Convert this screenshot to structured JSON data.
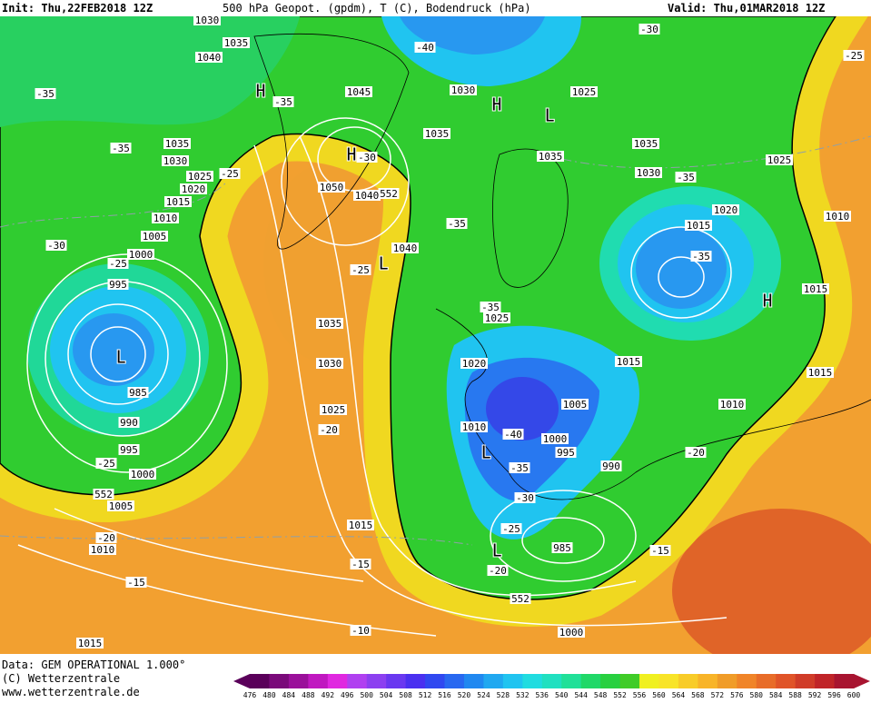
{
  "header": {
    "init": "Init: Thu,22FEB2018 12Z",
    "title": "500 hPa Geopot. (gpdm), T (C), Bodendruck (hPa)",
    "valid": "Valid: Thu,01MAR2018 12Z"
  },
  "footer": {
    "data": "Data: GEM OPERATIONAL 1.000°",
    "copyright": "(C) Wetterzentrale",
    "url": "www.wetterzentrale.de"
  },
  "scale": {
    "labels": [
      476,
      480,
      484,
      488,
      492,
      496,
      500,
      504,
      508,
      512,
      516,
      520,
      524,
      528,
      532,
      536,
      540,
      544,
      548,
      552,
      556,
      560,
      564,
      568,
      572,
      576,
      580,
      584,
      588,
      592,
      596,
      600
    ],
    "colors": [
      "#5a005a",
      "#7a0a7a",
      "#9a109a",
      "#c018c0",
      "#e028e0",
      "#b040f0",
      "#8c40f0",
      "#6a38f0",
      "#4a30f0",
      "#3048f0",
      "#2868f0",
      "#2088f0",
      "#20a8f0",
      "#20c4f0",
      "#20dce0",
      "#20e0c0",
      "#20e098",
      "#20d868",
      "#28d040",
      "#40cc28",
      "#f0f020",
      "#f8e428",
      "#f8cc28",
      "#f8b428",
      "#f09c28",
      "#f08428",
      "#e86c28",
      "#e05428",
      "#d03c28",
      "#c02428",
      "#a81430"
    ]
  },
  "map_labels": [
    "1030",
    "1035",
    "1040",
    "-35",
    "H",
    "-35",
    "1045",
    "1030",
    "H",
    "L",
    "1025",
    "-40",
    "-30",
    "-25",
    "-35",
    "1035",
    "1030",
    "1025",
    "-25",
    "1020",
    "H",
    "-30",
    "1035",
    "1035",
    "1035",
    "1030",
    "-35",
    "1025",
    "1050",
    "1040",
    "552",
    "1015",
    "1010",
    "1020",
    "1010",
    "1015",
    "-35",
    "1005",
    "1040",
    "L",
    "-30",
    "1000",
    "-25",
    "-25",
    "-35",
    "995",
    "H",
    "1015",
    "-35",
    "1025",
    "1035",
    "L",
    "1030",
    "1020",
    "1015",
    "1015",
    "985",
    "1005",
    "1010",
    "1025",
    "990",
    "-20",
    "1010",
    "-40",
    "1000",
    "995",
    "995",
    "L",
    "-20",
    "-25",
    "1000",
    "-35",
    "990",
    "552",
    "-30",
    "1005",
    "1015",
    "-25",
    "-20",
    "1010",
    "L",
    "985",
    "-15",
    "-20",
    "-15",
    "-15",
    "552",
    "-10",
    "1000",
    "1015"
  ]
}
